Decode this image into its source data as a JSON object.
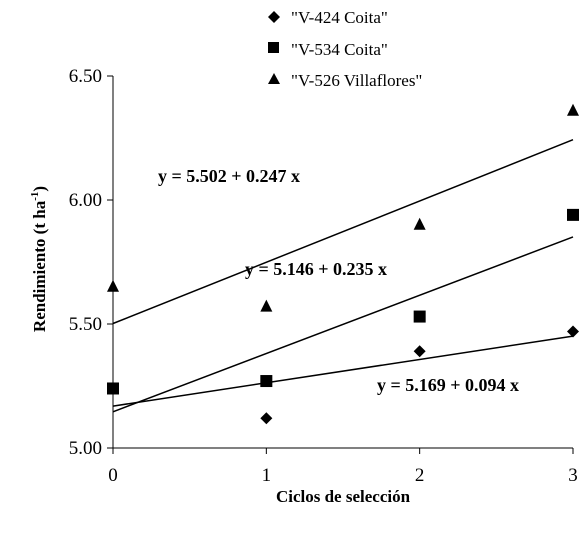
{
  "chart_data": {
    "type": "scatter",
    "xlabel": "Ciclos de selección",
    "ylabel": "Rendimiento (t ha",
    "ylabel_sup": "-1",
    "ylabel_end": ")",
    "xlim": [
      0,
      3
    ],
    "ylim": [
      5.0,
      6.5
    ],
    "x_ticks": [
      "0",
      "1",
      "2",
      "3"
    ],
    "y_ticks": [
      "5.00",
      "5.50",
      "6.00",
      "6.50"
    ],
    "grid": false,
    "legend_position": "top-right",
    "series": [
      {
        "name": "\"V-424 Coita\"",
        "marker": "diamond",
        "x": [
          0,
          1,
          2,
          3
        ],
        "y": [
          5.24,
          5.12,
          5.39,
          5.47
        ],
        "fit": {
          "intercept": 5.169,
          "slope": 0.094,
          "label": "y = 5.169 +  0.094 x"
        }
      },
      {
        "name": "\"V-534 Coita\"",
        "marker": "square",
        "x": [
          0,
          1,
          2,
          3
        ],
        "y": [
          5.24,
          5.27,
          5.53,
          5.94
        ],
        "fit": {
          "intercept": 5.146,
          "slope": 0.235,
          "label": "y = 5.146 + 0.235 x"
        }
      },
      {
        "name": "\"V-526 Villaflores\"",
        "marker": "triangle",
        "x": [
          0,
          1,
          2,
          3
        ],
        "y": [
          5.65,
          5.57,
          5.9,
          6.36
        ],
        "fit": {
          "intercept": 5.502,
          "slope": 0.247,
          "label": "y = 5.502 + 0.247 x"
        }
      }
    ]
  }
}
